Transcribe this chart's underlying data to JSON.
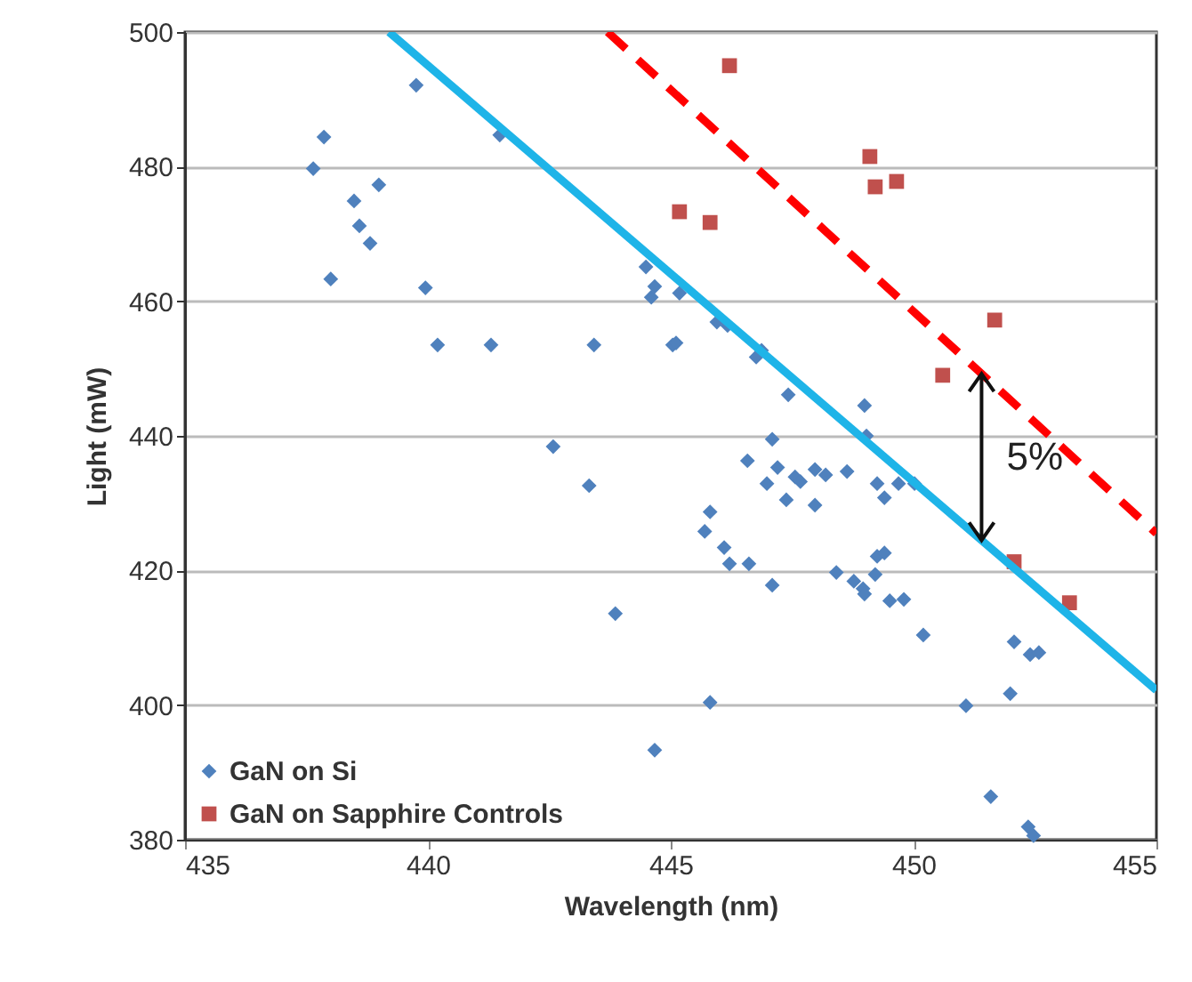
{
  "chart_data": {
    "type": "scatter",
    "xlabel": "Wavelength (nm)",
    "ylabel": "Light (mW)",
    "xlim": [
      435,
      455
    ],
    "xticks": [
      435,
      440,
      445,
      450,
      455
    ],
    "ylim": [
      380,
      500
    ],
    "yticks": [
      380,
      400,
      420,
      440,
      460,
      480,
      500
    ],
    "grid": "y",
    "legend": "bottom left",
    "annotations": [
      "5%"
    ],
    "series": [
      {
        "name": "GaN on Si",
        "color": "#4f81bd",
        "marker": "diamond",
        "x": [
          439.76,
          437.86,
          437.64,
          438.48,
          438.99,
          438.59,
          438.81,
          438.0,
          439.95,
          441.48,
          440.2,
          441.3,
          443.42,
          444.49,
          444.67,
          444.6,
          445.04,
          445.18,
          442.58,
          443.32,
          443.86,
          444.67,
          445.95,
          446.17,
          445.11,
          446.87,
          446.76,
          447.42,
          448.99,
          447.09,
          449.03,
          446.58,
          447.2,
          446.98,
          447.56,
          447.67,
          447.38,
          447.97,
          448.19,
          447.97,
          448.63,
          449.25,
          449.4,
          449.69,
          450.02,
          445.81,
          445.7,
          446.1,
          446.21,
          446.61,
          447.09,
          448.41,
          448.77,
          448.96,
          448.99,
          449.21,
          449.25,
          449.4,
          449.51,
          449.8,
          450.2,
          452.07,
          452.4,
          452.58,
          451.99,
          451.08,
          445.81,
          451.59,
          452.36,
          452.47
        ],
        "values": [
          492.1,
          484.4,
          479.7,
          474.9,
          477.3,
          471.2,
          468.6,
          463.3,
          462.0,
          484.7,
          453.5,
          453.5,
          453.5,
          465.1,
          462.2,
          460.6,
          453.5,
          461.2,
          438.4,
          432.6,
          413.6,
          393.3,
          456.9,
          456.4,
          453.8,
          452.7,
          451.7,
          446.1,
          444.5,
          439.5,
          440.0,
          436.3,
          435.3,
          432.9,
          433.9,
          433.2,
          430.5,
          435.0,
          434.2,
          429.7,
          434.7,
          432.9,
          430.8,
          432.9,
          432.9,
          428.7,
          425.8,
          423.4,
          421.0,
          421.0,
          417.8,
          419.7,
          418.4,
          417.3,
          416.5,
          419.4,
          422.1,
          422.6,
          415.5,
          415.7,
          410.4,
          409.4,
          407.5,
          407.8,
          401.7,
          399.9,
          400.4,
          386.4,
          381.9,
          380.6
        ]
      },
      {
        "name": "GaN on Sapphire Controls",
        "color": "#c0504d",
        "marker": "square",
        "x": [
          446.21,
          445.18,
          445.81,
          449.1,
          449.21,
          449.65,
          451.67,
          450.6,
          452.07,
          453.21
        ],
        "values": [
          495.0,
          473.3,
          471.7,
          481.5,
          477.0,
          477.8,
          457.2,
          449.0,
          421.3,
          415.2
        ]
      },
      {
        "type": "line",
        "color": "#1eb4e8",
        "line_style": "solid",
        "x": [
          439.2,
          455
        ],
        "values": [
          500,
          402.2
        ]
      },
      {
        "type": "line",
        "color": "#ff0000",
        "line_style": "dashed",
        "x": [
          443.7,
          455
        ],
        "values": [
          500,
          425.5
        ]
      }
    ]
  }
}
